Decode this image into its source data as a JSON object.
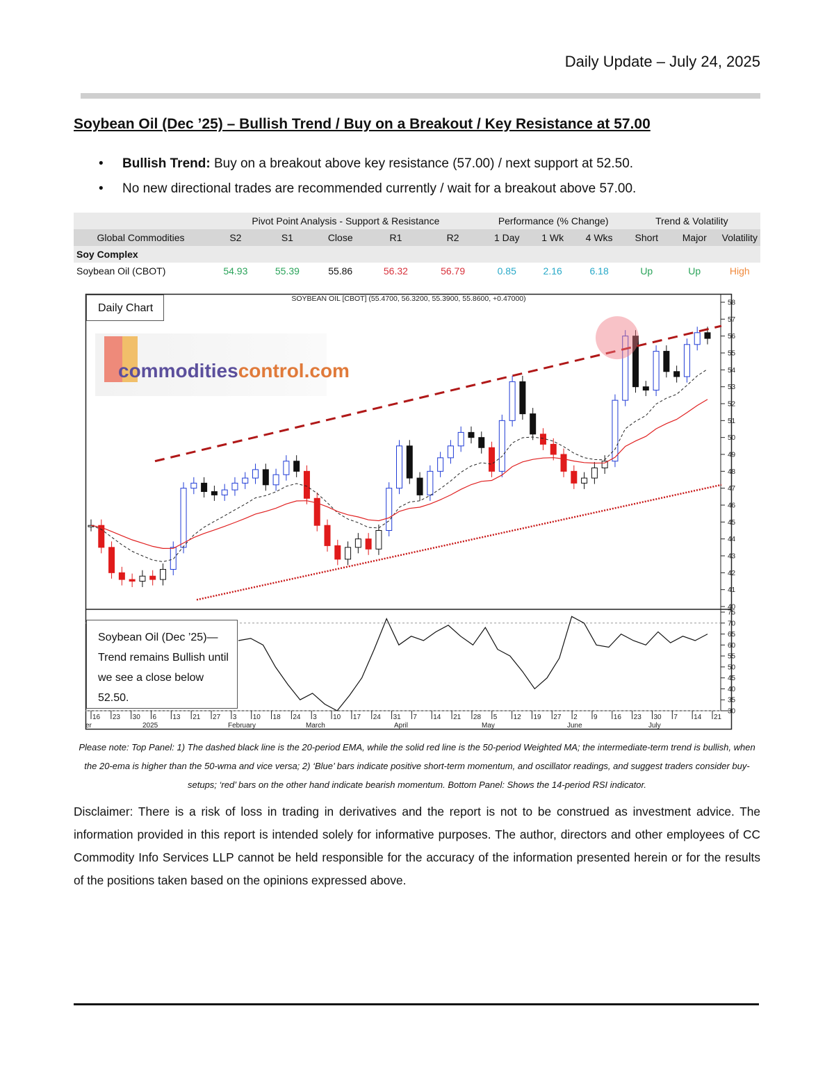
{
  "header": {
    "date_line": "Daily Update – July 24, 2025"
  },
  "report": {
    "heading": "Soybean Oil (Dec   ’25) – Bullish Trend / Buy on a Breakout / Key Resistance at 57.00",
    "bullets": [
      {
        "bold": "Bullish Trend:",
        "text": " Buy on a breakout above key resistance (57.00) / next support at 52.50."
      },
      {
        "bold": "",
        "text": "No new directional trades are recommended currently / wait for a breakout above 57.00."
      }
    ]
  },
  "table": {
    "group_headers": {
      "pivot": "Pivot Point Analysis - Support & Resistance",
      "performance": "Performance (% Change)",
      "trend": "Trend & Volatility"
    },
    "columns": [
      "Global Commodities",
      "S2",
      "S1",
      "Close",
      "R1",
      "R2",
      "1 Day",
      "1 Wk",
      "4 Wks",
      "Short",
      "Major",
      "Volatility"
    ],
    "group": "Soy Complex",
    "row": {
      "name": "Soybean Oil (CBOT)",
      "s2": "54.93",
      "s1": "55.39",
      "close": "55.86",
      "r1": "56.32",
      "r2": "56.79",
      "d1": "0.85",
      "wk1": "2.16",
      "wk4": "6.18",
      "short": "Up",
      "major": "Up",
      "volatility": "High"
    }
  },
  "chart": {
    "panel_label": "Daily Chart",
    "title": "SOYBEAN OIL [CBOT] (55.4700, 56.3200, 55.3900, 55.8600, +0.47000)",
    "logo": {
      "part1": "commodities",
      "part2": "control.com"
    },
    "rsi_note": "Soybean Oil (Dec   ’25)— Trend remains Bullish until we see a close below 52.50.",
    "price_axis": [
      "58",
      "57",
      "56",
      "55",
      "54",
      "53",
      "52",
      "51",
      "50",
      "49",
      "48",
      "47",
      "46",
      "45",
      "44",
      "43",
      "42",
      "41",
      "40"
    ],
    "rsi_axis": [
      "75",
      "70",
      "65",
      "60",
      "55",
      "50",
      "45",
      "40",
      "35",
      "30"
    ],
    "date_ticks": [
      "16",
      "23",
      "30",
      "6",
      "13",
      "21",
      "27",
      "3",
      "10",
      "18",
      "24",
      "3",
      "10",
      "17",
      "24",
      "31",
      "7",
      "14",
      "21",
      "28",
      "5",
      "12",
      "19",
      "27",
      "2",
      "9",
      "16",
      "23",
      "30",
      "7",
      "14",
      "21"
    ],
    "month_labels": [
      "er",
      "2025",
      "February",
      "March",
      "April",
      "May",
      "June",
      "July"
    ]
  },
  "chart_data": {
    "type": "candlestick",
    "title": "SOYBEAN OIL [CBOT] (55.4700, 56.3200, 55.3900, 55.8600, +0.47000)",
    "ylim": [
      40,
      58
    ],
    "rsi_ylim": [
      30,
      75
    ],
    "approx_close_path": [
      44.8,
      43.5,
      42.0,
      41.6,
      41.5,
      41.8,
      41.6,
      42.2,
      43.5,
      47.0,
      47.3,
      46.8,
      46.6,
      46.9,
      47.3,
      47.6,
      48.1,
      47.2,
      47.8,
      48.6,
      48.0,
      46.4,
      44.8,
      43.6,
      42.8,
      43.5,
      44.0,
      43.4,
      44.5,
      47.0,
      49.5,
      47.6,
      46.6,
      48.0,
      48.8,
      49.5,
      50.3,
      50.0,
      49.4,
      48.0,
      51.0,
      53.3,
      51.4,
      50.2,
      49.6,
      49.0,
      48.0,
      47.3,
      47.6,
      48.2,
      48.6,
      52.2,
      56.0,
      53.0,
      52.8,
      55.1,
      53.9,
      53.6,
      55.5,
      56.2,
      55.86
    ],
    "rsi_path": [
      62,
      63,
      60,
      50,
      42,
      35,
      38,
      33,
      30,
      37,
      45,
      58,
      72,
      60,
      64,
      62,
      66,
      69,
      64,
      60,
      68,
      58,
      55,
      48,
      40,
      45,
      54,
      73,
      70,
      60,
      59,
      65,
      62,
      60,
      66,
      61,
      64,
      62,
      65
    ],
    "series": [
      {
        "name": "20-period EMA",
        "style": "dashed black"
      },
      {
        "name": "50-period Weighted MA",
        "style": "solid red"
      }
    ],
    "annotations": [
      "rising channel: dashed red resistance line",
      "dotted red support line",
      "red circle near early-June high"
    ]
  },
  "footer": {
    "note": "Please note: Top Panel: 1) The dashed black line is the 20-period EMA, while the solid red line is the 50-period Weighted MA; the intermediate-term trend is bullish, when the 20-ema is higher than the 50-wma and vice versa; 2)   ‘Blue’   bars indicate positive short-term momentum, and oscillator readings, and suggest traders consider buy-setups;   ‘red’   bars on the other hand indicate bearish momentum. Bottom Panel: Shows the 14-period RSI indicator.",
    "disclaimer": "Disclaimer: There is a risk of loss in trading in derivatives and the report is not to be construed as investment advice. The information provided in this report is intended solely for informative purposes. The author, directors and other employees of CC Commodity Info Services LLP cannot be held responsible for the accuracy of the information presented herein or for the results of the positions taken based on the opinions expressed above."
  }
}
